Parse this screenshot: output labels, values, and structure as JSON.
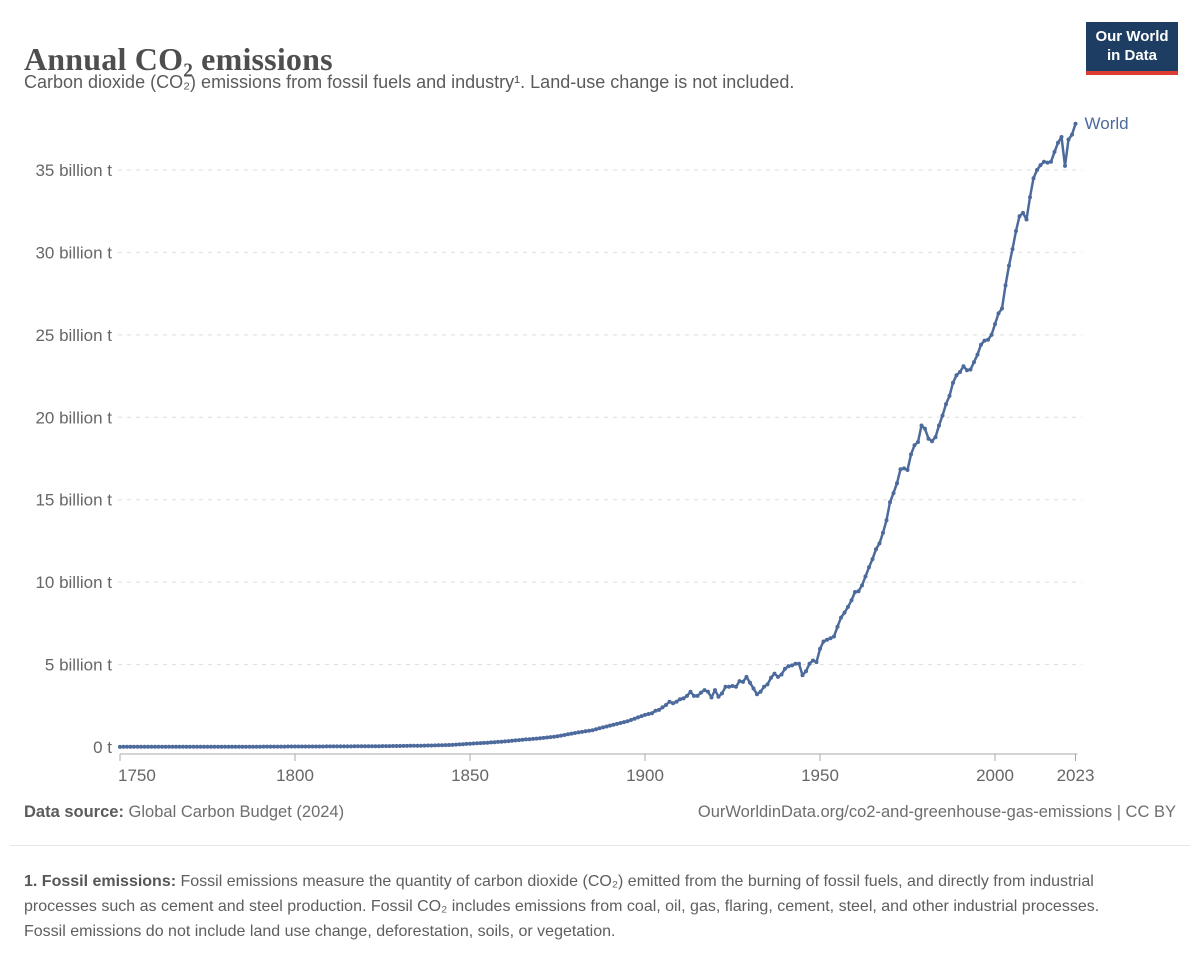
{
  "header": {
    "title": "Annual CO₂ emissions",
    "subtitle": "Carbon dioxide (CO₂) emissions from fossil fuels and industry¹. Land-use change is not included."
  },
  "logo": {
    "line1": "Our World",
    "line2": "in Data"
  },
  "chart_data": {
    "type": "line",
    "title": "Annual CO₂ emissions",
    "unit": "billion t",
    "xlabel": "",
    "ylabel": "",
    "grid": "horizontal-dashed",
    "legend_position": "end-of-line-label",
    "xlim": [
      1750,
      2023
    ],
    "ylim": [
      0,
      38.5
    ],
    "x_ticks": [
      "1750",
      "1800",
      "1850",
      "1900",
      "1950",
      "2000",
      "2023"
    ],
    "x_tick_years": [
      1750,
      1800,
      1850,
      1900,
      1950,
      2000,
      2023
    ],
    "y_ticks": [
      {
        "value": 0,
        "label": "0 t"
      },
      {
        "value": 5,
        "label": "5 billion t"
      },
      {
        "value": 10,
        "label": "10 billion t"
      },
      {
        "value": 15,
        "label": "15 billion t"
      },
      {
        "value": 20,
        "label": "20 billion t"
      },
      {
        "value": 25,
        "label": "25 billion t"
      },
      {
        "value": 30,
        "label": "30 billion t"
      },
      {
        "value": 35,
        "label": "35 billion t"
      }
    ],
    "series": [
      {
        "name": "World",
        "color": "#4c6a9c",
        "points": [
          [
            1750,
            0.009
          ],
          [
            1755,
            0.011
          ],
          [
            1760,
            0.011
          ],
          [
            1765,
            0.012
          ],
          [
            1770,
            0.013
          ],
          [
            1775,
            0.015
          ],
          [
            1780,
            0.016
          ],
          [
            1785,
            0.018
          ],
          [
            1790,
            0.021
          ],
          [
            1795,
            0.025
          ],
          [
            1800,
            0.03
          ],
          [
            1805,
            0.031
          ],
          [
            1810,
            0.034
          ],
          [
            1815,
            0.038
          ],
          [
            1820,
            0.045
          ],
          [
            1825,
            0.053
          ],
          [
            1830,
            0.063
          ],
          [
            1835,
            0.078
          ],
          [
            1840,
            0.096
          ],
          [
            1845,
            0.13
          ],
          [
            1850,
            0.2
          ],
          [
            1855,
            0.26
          ],
          [
            1860,
            0.34
          ],
          [
            1865,
            0.44
          ],
          [
            1870,
            0.53
          ],
          [
            1875,
            0.65
          ],
          [
            1880,
            0.85
          ],
          [
            1885,
            1.02
          ],
          [
            1890,
            1.3
          ],
          [
            1895,
            1.56
          ],
          [
            1900,
            1.95
          ],
          [
            1901,
            2.0
          ],
          [
            1902,
            2.05
          ],
          [
            1903,
            2.2
          ],
          [
            1904,
            2.25
          ],
          [
            1905,
            2.4
          ],
          [
            1906,
            2.55
          ],
          [
            1907,
            2.75
          ],
          [
            1908,
            2.65
          ],
          [
            1909,
            2.75
          ],
          [
            1910,
            2.9
          ],
          [
            1911,
            2.95
          ],
          [
            1912,
            3.1
          ],
          [
            1913,
            3.35
          ],
          [
            1914,
            3.1
          ],
          [
            1915,
            3.1
          ],
          [
            1916,
            3.3
          ],
          [
            1917,
            3.45
          ],
          [
            1918,
            3.35
          ],
          [
            1919,
            3.0
          ],
          [
            1920,
            3.45
          ],
          [
            1921,
            3.05
          ],
          [
            1922,
            3.25
          ],
          [
            1923,
            3.65
          ],
          [
            1924,
            3.65
          ],
          [
            1925,
            3.7
          ],
          [
            1926,
            3.65
          ],
          [
            1927,
            4.0
          ],
          [
            1928,
            3.95
          ],
          [
            1929,
            4.25
          ],
          [
            1930,
            3.9
          ],
          [
            1931,
            3.55
          ],
          [
            1932,
            3.2
          ],
          [
            1933,
            3.35
          ],
          [
            1934,
            3.65
          ],
          [
            1935,
            3.8
          ],
          [
            1936,
            4.2
          ],
          [
            1937,
            4.45
          ],
          [
            1938,
            4.25
          ],
          [
            1939,
            4.4
          ],
          [
            1940,
            4.75
          ],
          [
            1941,
            4.9
          ],
          [
            1942,
            4.95
          ],
          [
            1943,
            5.05
          ],
          [
            1944,
            5.05
          ],
          [
            1945,
            4.35
          ],
          [
            1946,
            4.6
          ],
          [
            1947,
            5.05
          ],
          [
            1948,
            5.25
          ],
          [
            1949,
            5.15
          ],
          [
            1950,
            5.95
          ],
          [
            1951,
            6.4
          ],
          [
            1952,
            6.5
          ],
          [
            1953,
            6.6
          ],
          [
            1954,
            6.7
          ],
          [
            1955,
            7.3
          ],
          [
            1956,
            7.85
          ],
          [
            1957,
            8.15
          ],
          [
            1958,
            8.5
          ],
          [
            1959,
            8.9
          ],
          [
            1960,
            9.4
          ],
          [
            1961,
            9.45
          ],
          [
            1962,
            9.8
          ],
          [
            1963,
            10.35
          ],
          [
            1964,
            10.9
          ],
          [
            1965,
            11.4
          ],
          [
            1966,
            12.0
          ],
          [
            1967,
            12.35
          ],
          [
            1968,
            13.0
          ],
          [
            1969,
            13.75
          ],
          [
            1970,
            14.85
          ],
          [
            1971,
            15.4
          ],
          [
            1972,
            16.0
          ],
          [
            1973,
            16.85
          ],
          [
            1974,
            16.9
          ],
          [
            1975,
            16.8
          ],
          [
            1976,
            17.75
          ],
          [
            1977,
            18.3
          ],
          [
            1978,
            18.5
          ],
          [
            1979,
            19.5
          ],
          [
            1980,
            19.3
          ],
          [
            1981,
            18.7
          ],
          [
            1982,
            18.55
          ],
          [
            1983,
            18.8
          ],
          [
            1984,
            19.5
          ],
          [
            1985,
            20.1
          ],
          [
            1986,
            20.8
          ],
          [
            1987,
            21.3
          ],
          [
            1988,
            22.1
          ],
          [
            1989,
            22.55
          ],
          [
            1990,
            22.75
          ],
          [
            1991,
            23.1
          ],
          [
            1992,
            22.85
          ],
          [
            1993,
            22.9
          ],
          [
            1994,
            23.35
          ],
          [
            1995,
            23.8
          ],
          [
            1996,
            24.4
          ],
          [
            1997,
            24.65
          ],
          [
            1998,
            24.7
          ],
          [
            1999,
            25.0
          ],
          [
            2000,
            25.65
          ],
          [
            2001,
            26.3
          ],
          [
            2002,
            26.6
          ],
          [
            2003,
            28.0
          ],
          [
            2004,
            29.2
          ],
          [
            2005,
            30.2
          ],
          [
            2006,
            31.3
          ],
          [
            2007,
            32.2
          ],
          [
            2008,
            32.4
          ],
          [
            2009,
            32.0
          ],
          [
            2010,
            33.35
          ],
          [
            2011,
            34.5
          ],
          [
            2012,
            35.0
          ],
          [
            2013,
            35.3
          ],
          [
            2014,
            35.5
          ],
          [
            2015,
            35.45
          ],
          [
            2016,
            35.5
          ],
          [
            2017,
            36.1
          ],
          [
            2018,
            36.65
          ],
          [
            2019,
            37.0
          ],
          [
            2020,
            35.25
          ],
          [
            2021,
            36.85
          ],
          [
            2022,
            37.15
          ],
          [
            2023,
            37.8
          ]
        ]
      }
    ]
  },
  "footer": {
    "data_source_label": "Data source:",
    "data_source_value": " Global Carbon Budget (2024)",
    "link": "OurWorldinData.org/co2-and-greenhouse-gas-emissions | CC BY"
  },
  "footnote": {
    "lead": "1. Fossil emissions:",
    "body": " Fossil emissions measure the quantity of carbon dioxide (CO₂) emitted from the burning of fossil fuels, and directly from industrial processes such as cement and steel production. Fossil CO₂ includes emissions from coal, oil, gas, flaring, cement, steel, and other industrial processes. Fossil emissions do not include land use change, deforestation, soils, or vegetation."
  },
  "colors": {
    "line": "#4c6a9c",
    "grid": "#dedede",
    "axis": "#a8a8a8",
    "tick_text": "#666666",
    "logo_bg": "#1d3d63",
    "logo_accent": "#dc3c31"
  }
}
